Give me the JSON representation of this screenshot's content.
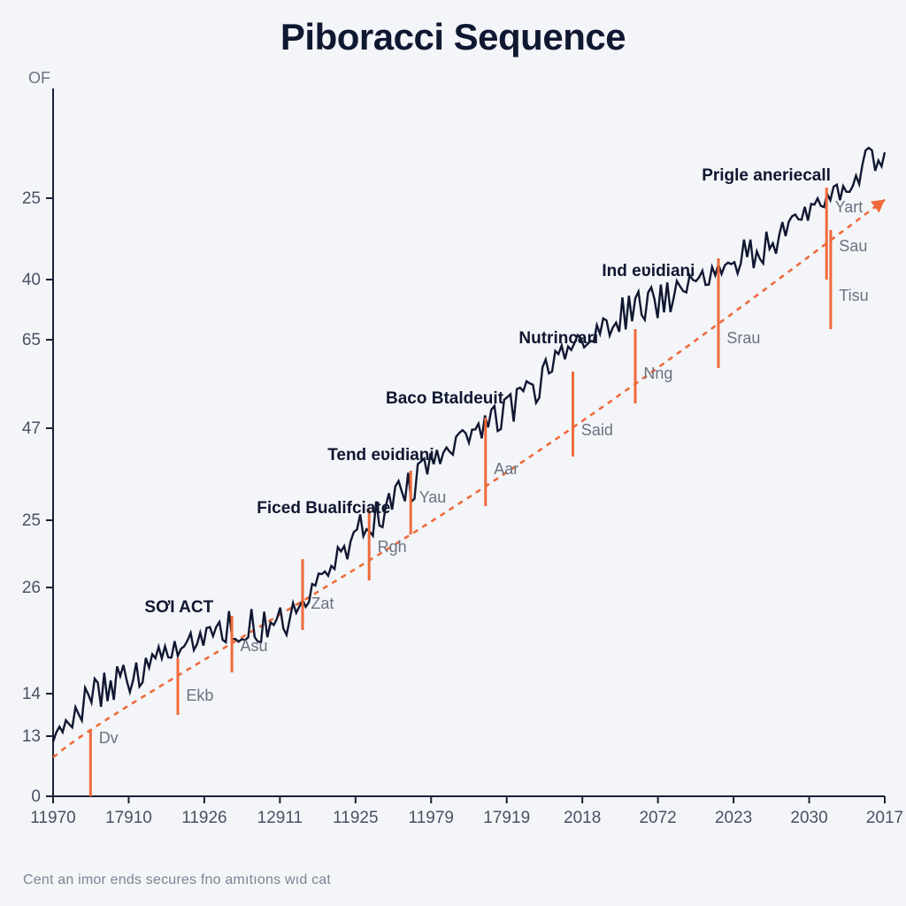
{
  "title": "Piboracci Sequence",
  "y_unit_label": "OF",
  "footnote": "Cent an imor ends secures fno amıtıons wıd cat",
  "chart": {
    "type": "line",
    "background_color": "#f3f5f9",
    "series_color": "#101731",
    "trend_color": "#ef6a3a",
    "marker_color": "#ef6a3a",
    "axis_color": "#1a1f36",
    "tick_font_color": "#4a5162",
    "trend_dash": "6 6",
    "x_ticks": [
      "11970",
      "17910",
      "11926",
      "12911",
      "11925",
      "11979",
      "17919",
      "2018",
      "2072",
      "2023",
      "2030",
      "2017"
    ],
    "y_ticks": [
      "0",
      "13",
      "14",
      "26",
      "25",
      "47",
      "65",
      "40",
      "25"
    ],
    "annotations_bold": [
      {
        "label": "SƠI ACT",
        "key": "soi"
      },
      {
        "label": "Ficed Bualifciate",
        "key": "ficed"
      },
      {
        "label": "Tend eʋidiani",
        "key": "tend"
      },
      {
        "label": "Baco Btaldeuit",
        "key": "baco"
      },
      {
        "label": "Nutrincari",
        "key": "nutri"
      },
      {
        "label": "Ind eʋidiani",
        "key": "ind"
      },
      {
        "label": "Prigle aneriecall",
        "key": "prigle"
      }
    ],
    "marker_labels": [
      "Dv",
      "Ekb",
      "Asu",
      "Zat",
      "Rgh",
      "Yau",
      "Aar",
      "Said",
      "Nng",
      "Srau",
      "Yart",
      "Sau",
      "Tisu"
    ]
  }
}
